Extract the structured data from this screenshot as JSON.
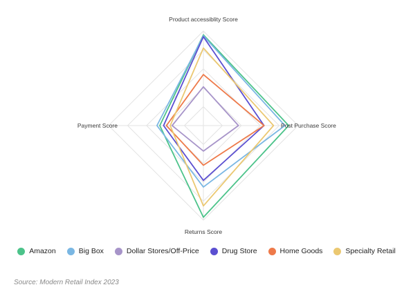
{
  "chart_data": {
    "type": "radar",
    "axes": [
      "Product accessiblity Score",
      "Post Purchase Score",
      "Returns Score",
      "Payment Score"
    ],
    "rlim": [
      0,
      10
    ],
    "grid": true,
    "legend_position": "bottom",
    "series": [
      {
        "name": "Amazon",
        "color": "#4cc38a",
        "values": [
          9.6,
          9.0,
          9.7,
          4.6
        ]
      },
      {
        "name": "Big Box",
        "color": "#7ab7e3",
        "values": [
          9.5,
          8.6,
          6.5,
          4.9
        ]
      },
      {
        "name": "Dollar Stores/Off-Price",
        "color": "#a794c9",
        "values": [
          4.1,
          3.7,
          2.7,
          3.3
        ]
      },
      {
        "name": "Drug Store",
        "color": "#5b4fd1",
        "values": [
          9.4,
          6.4,
          5.8,
          4.2
        ]
      },
      {
        "name": "Home Goods",
        "color": "#ee7a4a",
        "values": [
          5.4,
          6.4,
          4.2,
          3.9
        ]
      },
      {
        "name": "Specialty Retail",
        "color": "#ebc871",
        "values": [
          8.2,
          7.4,
          8.5,
          3.5
        ]
      }
    ]
  },
  "source": "Source: Modern Retail Index 2023"
}
